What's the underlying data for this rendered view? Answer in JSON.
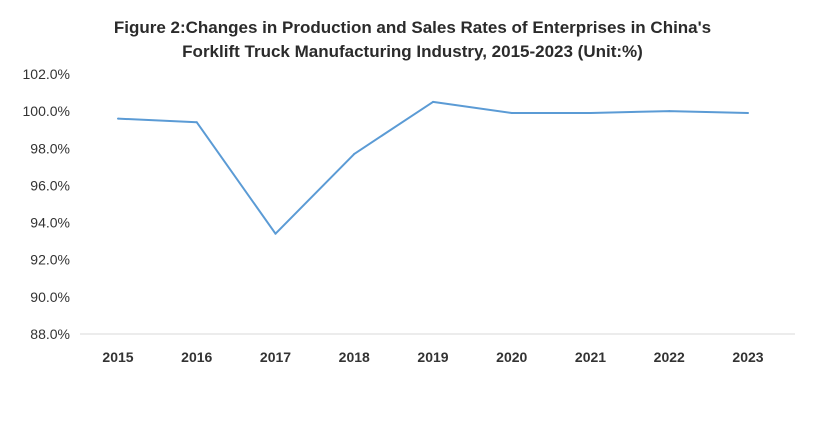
{
  "chart_data": {
    "type": "line",
    "title_lines": [
      "Figure 2:Changes in Production and Sales Rates of Enterprises in China's",
      "Forklift Truck Manufacturing Industry, 2015-2023 (Unit:%)"
    ],
    "categories": [
      "2015",
      "2016",
      "2017",
      "2018",
      "2019",
      "2020",
      "2021",
      "2022",
      "2023"
    ],
    "series": [
      {
        "name": "Production and Sales Rate",
        "values": [
          99.6,
          99.4,
          93.4,
          97.7,
          100.5,
          99.9,
          99.9,
          100.0,
          99.9
        ]
      }
    ],
    "ylim": [
      88.0,
      102.0
    ],
    "yticks": [
      "88.0%",
      "90.0%",
      "92.0%",
      "94.0%",
      "96.0%",
      "98.0%",
      "100.0%",
      "102.0%"
    ],
    "xlabel": "",
    "ylabel": "",
    "grid": false,
    "colors": {
      "line": "#5b9bd5",
      "axis": "#d9d9d9"
    }
  }
}
